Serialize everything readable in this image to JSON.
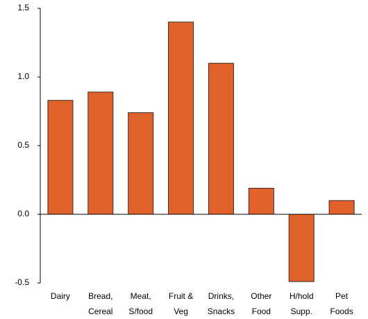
{
  "chart_data": {
    "type": "bar",
    "categories": [
      [
        "Dairy"
      ],
      [
        "Bread,",
        "Cereal"
      ],
      [
        "Meat,",
        "S/food"
      ],
      [
        "Fruit &",
        "Veg"
      ],
      [
        "Drinks,",
        "Snacks"
      ],
      [
        "Other",
        "Food"
      ],
      [
        "H/hold",
        "Supp."
      ],
      [
        "Pet",
        "Foods"
      ]
    ],
    "values": [
      0.83,
      0.89,
      0.74,
      1.4,
      1.1,
      0.19,
      -0.49,
      0.1
    ],
    "color": "#e0622a",
    "ylim": [
      -0.5,
      1.5
    ],
    "yticks": [
      -0.5,
      {
        "value": 0,
        "label": "0.0"
      },
      0.5,
      {
        "value": 1,
        "label": "1.0"
      },
      1.5
    ]
  }
}
